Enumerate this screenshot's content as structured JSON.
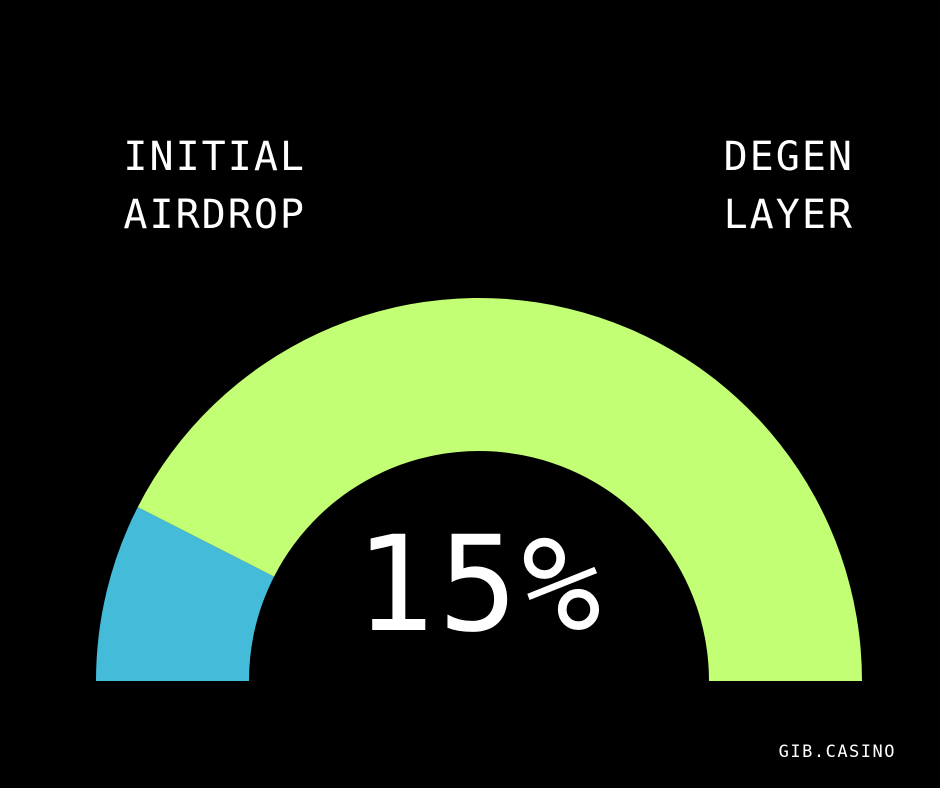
{
  "labels": {
    "left_line1": "INITIAL",
    "left_line2": "AIRDROP",
    "right_line1": "DEGEN",
    "right_line2": "LAYER"
  },
  "center_value": "15%",
  "footer": "GIB.CASINO",
  "colors": {
    "background": "#000000",
    "initial_airdrop": "#44bbd8",
    "degen_layer": "#c3ff74",
    "text": "#ffffff"
  },
  "chart_data": {
    "type": "pie",
    "shape": "semicircle-gauge",
    "slices": [
      {
        "category": "INITIAL AIRDROP",
        "value": 15,
        "color": "#44bbd8"
      },
      {
        "category": "DEGEN LAYER",
        "value": 85,
        "color": "#c3ff74"
      }
    ],
    "center_label": "15%"
  }
}
